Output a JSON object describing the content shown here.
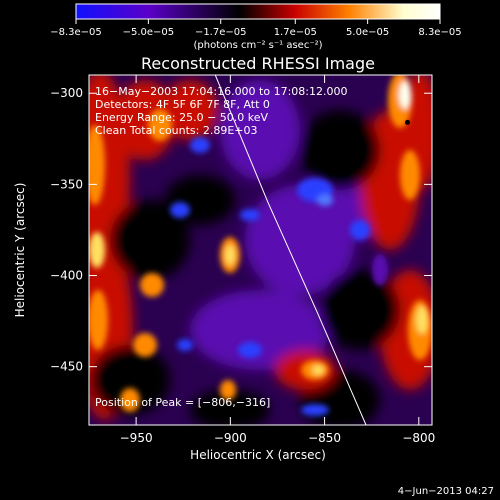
{
  "chart_data": {
    "type": "heatmap",
    "title": "Reconstructed RHESSI Image",
    "xlabel": "Heliocentric X (arcsec)",
    "ylabel": "Heliocentric Y (arcsec)",
    "xlim": [
      -975,
      -793
    ],
    "ylim": [
      -482,
      -290
    ],
    "x_ticks": [
      -950,
      -900,
      -850,
      -800
    ],
    "y_ticks": [
      -450,
      -400,
      -350,
      -300
    ],
    "x_tick_labels": [
      "−950",
      "−900",
      "−850",
      "−800"
    ],
    "y_tick_labels": [
      "−450",
      "−400",
      "−350",
      "−300"
    ],
    "colorbar": {
      "range": [
        -8.3e-05,
        8.3e-05
      ],
      "tick_values": [
        -8.3e-05,
        -5e-05,
        -1.7e-05,
        1.7e-05,
        5e-05,
        8.3e-05
      ],
      "tick_labels": [
        "−8.3e−05",
        "−5.0e−05",
        "−1.7e−05",
        "1.7e−05",
        "5.0e−05",
        "8.3e−05"
      ],
      "units_label": "(photons cm⁻² s⁻¹ asec⁻²)",
      "colors": [
        "#1010ff",
        "#5a00c8",
        "#000000",
        "#c80000",
        "#ff8000",
        "#ffffd0",
        "#ffffff"
      ]
    },
    "annotations": [
      "16−May−2003 17:04:16.000 to 17:08:12.000",
      "Detectors: 4F 5F 6F 7F 8F, Att 0",
      "Energy Range: 25.0 − 50.0 keV",
      "Clean    Total counts: 2.89E+03"
    ],
    "peak_label": "Position of Peak = [−806,−316]",
    "peak": [
      -806,
      -316
    ],
    "limb": [
      [
        -908,
        -290
      ],
      [
        -880,
        -360
      ],
      [
        -854,
        -420
      ],
      [
        -828,
        -482
      ]
    ],
    "grid": false
  },
  "footer": {
    "timestamp": "4−Jun−2013 04:27"
  }
}
